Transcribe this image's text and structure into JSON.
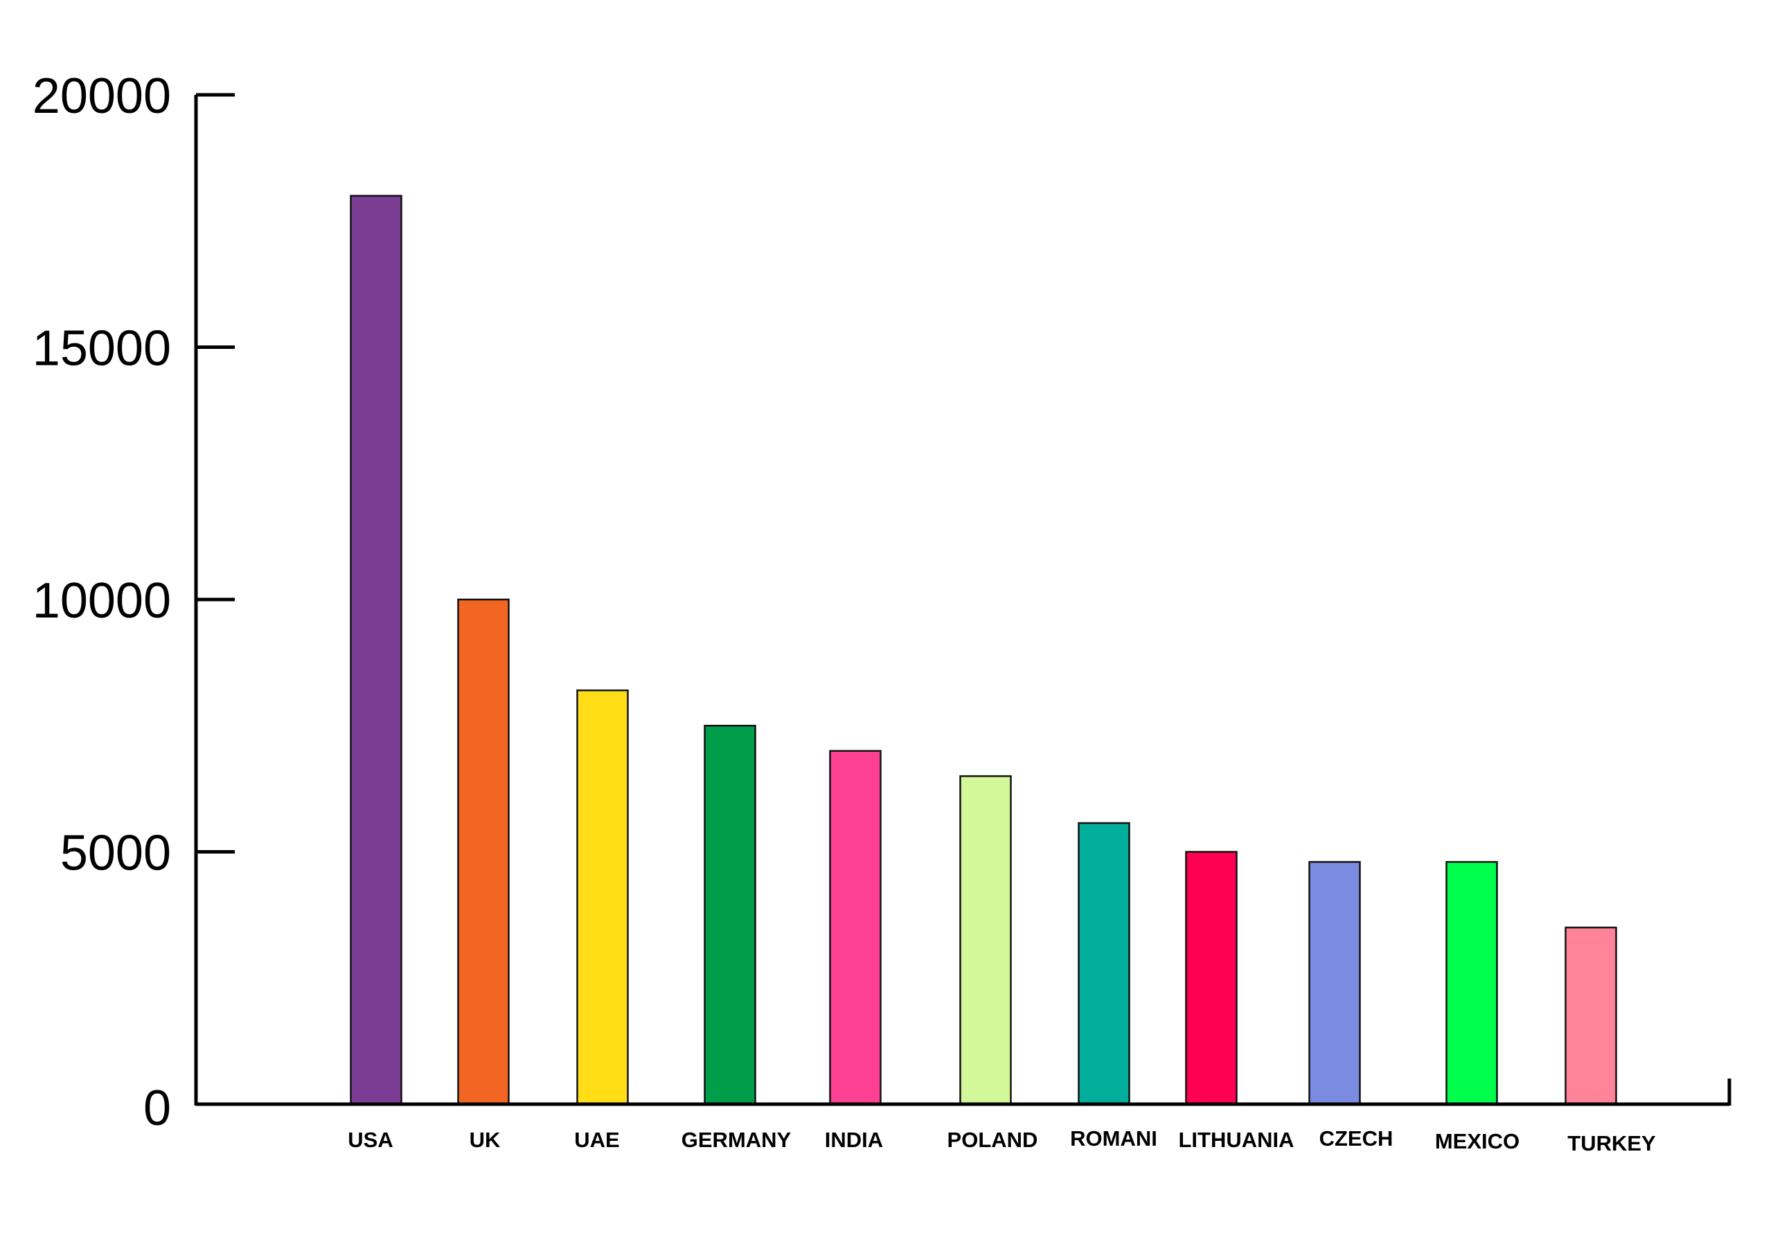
{
  "chart_data": {
    "type": "bar",
    "title": "",
    "xlabel": "",
    "ylabel": "",
    "categories": [
      "USA",
      "UK",
      "UAE",
      "GERMANY",
      "INDIA",
      "POLAND",
      "ROMANI",
      "LITHUANIA",
      "CZECH",
      "MEXICO",
      "TURKEY"
    ],
    "values": [
      18000,
      10000,
      8200,
      7500,
      7000,
      6500,
      5570,
      5000,
      4800,
      4800,
      3500
    ],
    "colors": [
      "#7b3d93",
      "#f26522",
      "#ffde17",
      "#009e4b",
      "#ff4193",
      "#d2f899",
      "#00ae9a",
      "#ff0055",
      "#7b8be0",
      "#00ff4c",
      "#ff8399"
    ],
    "ylim": [
      0,
      20000
    ],
    "yticks": [
      0,
      5000,
      10000,
      15000,
      20000
    ],
    "ytick_labels": [
      "0",
      "5000",
      "10000",
      "15000",
      "20000"
    ],
    "grid": false,
    "legend": "none"
  }
}
